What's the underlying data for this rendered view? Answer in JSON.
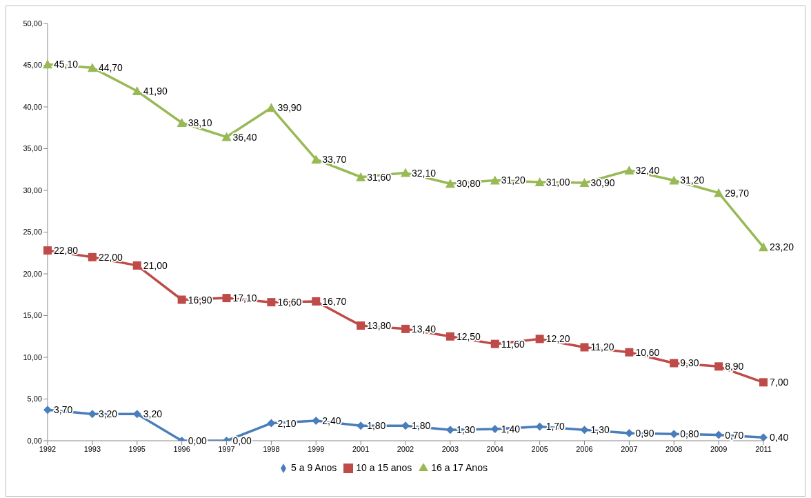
{
  "chart_data": {
    "type": "line",
    "categories": [
      "1992",
      "1993",
      "1995",
      "1996",
      "1997",
      "1998",
      "1999",
      "2001",
      "2002",
      "2003",
      "2004",
      "2005",
      "2006",
      "2007",
      "2008",
      "2009",
      "2011"
    ],
    "series": [
      {
        "name": "5 a 9 Anos",
        "color": "#4a7ebb",
        "marker": "diamond",
        "values": [
          3.7,
          3.2,
          3.2,
          0,
          0,
          2.1,
          2.4,
          1.8,
          1.8,
          1.3,
          1.4,
          1.7,
          1.3,
          0.9,
          0.8,
          0.7,
          0.4
        ],
        "value_labels": [
          "3,70",
          "3,20",
          "3,20",
          "0,00",
          "0,00",
          "2,10",
          "2,40",
          "1,80",
          "1,80",
          "1,30",
          "1,40",
          "1,70",
          "1,30",
          "0,90",
          "0,80",
          "0,70",
          "0,40"
        ]
      },
      {
        "name": "10 a 15 anos",
        "color": "#be4b48",
        "marker": "square",
        "values": [
          22.8,
          22,
          21,
          16.9,
          17.1,
          16.6,
          16.7,
          13.8,
          13.4,
          12.5,
          11.6,
          12.2,
          11.2,
          10.6,
          9.3,
          8.9,
          7
        ],
        "value_labels": [
          "22,80",
          "22,00",
          "21,00",
          "16,90",
          "17,10",
          "16,60",
          "16,70",
          "13,80",
          "13,40",
          "12,50",
          "11,60",
          "12,20",
          "11,20",
          "10,60",
          "9,30",
          "8,90",
          "7,00"
        ]
      },
      {
        "name": "16 a 17 Anos",
        "color": "#98b954",
        "marker": "triangle",
        "values": [
          45.1,
          44.7,
          41.9,
          38.1,
          36.4,
          39.9,
          33.7,
          31.6,
          32.1,
          30.8,
          31.2,
          31,
          30.9,
          32.4,
          31.2,
          29.7,
          23.2
        ],
        "value_labels": [
          "45,10",
          "44,70",
          "41,90",
          "38,10",
          "36,40",
          "39,90",
          "33,70",
          "31,60",
          "32,10",
          "30,80",
          "31,20",
          "31,00",
          "30,90",
          "32,40",
          "31,20",
          "29,70",
          "23,20"
        ]
      }
    ],
    "ylim": [
      0,
      50
    ],
    "yticks": [
      {
        "value": 0,
        "label": "0,00"
      },
      {
        "value": 5,
        "label": "5,00"
      },
      {
        "value": 10,
        "label": "10,00"
      },
      {
        "value": 15,
        "label": "15,00"
      },
      {
        "value": 20,
        "label": "20,00"
      },
      {
        "value": 25,
        "label": "25,00"
      },
      {
        "value": 30,
        "label": "30,00"
      },
      {
        "value": 35,
        "label": "35,00"
      },
      {
        "value": 40,
        "label": "40,00"
      },
      {
        "value": 45,
        "label": "45,00"
      },
      {
        "value": 50,
        "label": "50,00"
      }
    ],
    "grid": false,
    "legend": "bottom",
    "line_style": "solid"
  }
}
